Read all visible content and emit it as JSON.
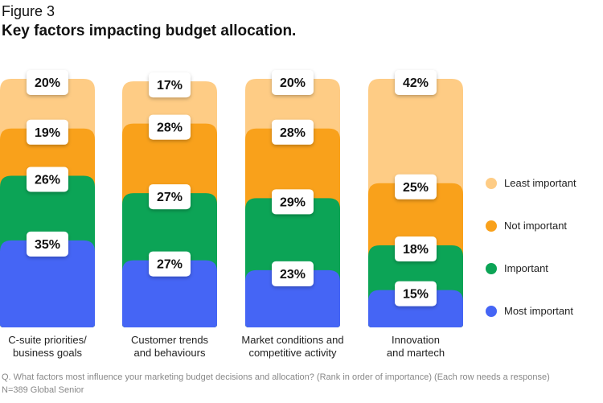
{
  "figure_label": "Figure 3",
  "title": "Key factors impacting budget allocation.",
  "chart_data": {
    "type": "bar",
    "stacked": true,
    "title": "Key factors impacting budget allocation.",
    "categories": [
      "C-suite priorities/ business goals",
      "Customer trends and behaviours",
      "Market conditions and competitive activity",
      "Innovation and martech"
    ],
    "category_lines": [
      [
        "C-suite priorities/",
        "business goals"
      ],
      [
        "Customer trends",
        "and behaviours"
      ],
      [
        "Market conditions and",
        "competitive activity"
      ],
      [
        "Innovation",
        "and martech"
      ]
    ],
    "series": [
      {
        "name": "Most important",
        "color": "#4565F5",
        "values": [
          35,
          27,
          23,
          15
        ]
      },
      {
        "name": "Important",
        "color": "#0CA456",
        "values": [
          26,
          27,
          29,
          18
        ]
      },
      {
        "name": "Not important",
        "color": "#F9A11B",
        "values": [
          19,
          28,
          28,
          25
        ]
      },
      {
        "name": "Least important",
        "color": "#FECC85",
        "values": [
          20,
          17,
          20,
          42
        ]
      }
    ],
    "unit": "%",
    "ylim": [
      0,
      100
    ],
    "legend": "right",
    "grid": false
  },
  "legend_order": [
    "Least important",
    "Not important",
    "Important",
    "Most important"
  ],
  "footnote": {
    "question": "Q. What factors most influence your marketing budget decisions and allocation? (Rank in order of importance) (Each row needs a response)",
    "sample": "N=389 Global Senior"
  }
}
